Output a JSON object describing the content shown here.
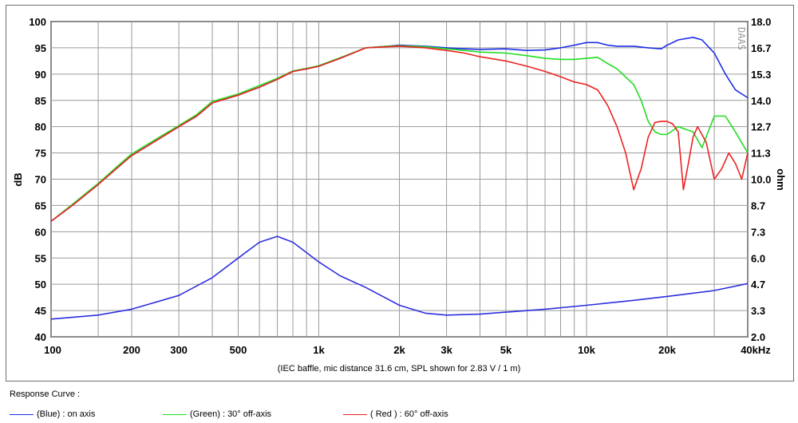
{
  "chart_data": {
    "type": "line",
    "title": "",
    "caption": "(IEC baffle, mic distance 31.6 cm, SPL shown for 2.83 V / 1 m)",
    "brand_mark": "DAAS",
    "xscale": "log",
    "xlim": [
      100,
      40000
    ],
    "x_ticks": [
      {
        "value": 100,
        "label": "100"
      },
      {
        "value": 200,
        "label": "200"
      },
      {
        "value": 300,
        "label": "300"
      },
      {
        "value": 500,
        "label": "500"
      },
      {
        "value": 1000,
        "label": "1k"
      },
      {
        "value": 2000,
        "label": "2k"
      },
      {
        "value": 3000,
        "label": "3k"
      },
      {
        "value": 5000,
        "label": "5k"
      },
      {
        "value": 10000,
        "label": "10k"
      },
      {
        "value": 20000,
        "label": "20k"
      },
      {
        "value": 40000,
        "label": "40kHz"
      }
    ],
    "x_gridlines": [
      100,
      150,
      200,
      300,
      400,
      500,
      600,
      700,
      800,
      900,
      1000,
      2000,
      3000,
      4000,
      5000,
      6000,
      7000,
      8000,
      9000,
      10000,
      20000,
      30000,
      40000
    ],
    "ylabel": "dB",
    "ylim": [
      40,
      100
    ],
    "y_ticks": [
      "100",
      "95",
      "90",
      "85",
      "80",
      "75",
      "70",
      "65",
      "60",
      "55",
      "50",
      "45",
      "40"
    ],
    "y2label": "ohm",
    "y2lim": [
      2.0,
      18.0
    ],
    "y2_ticks": [
      "18.0",
      "16.7",
      "15.3",
      "14.0",
      "12.7",
      "11.3",
      "10.0",
      "8.7",
      "7.3",
      "6.0",
      "4.7",
      "3.3",
      "2.0"
    ],
    "grid": true,
    "legend_placement": "bottom",
    "legend_title": "Response Curve :",
    "series": [
      {
        "name": "(Blue)  : on axis",
        "axis": "dB",
        "color": "#1e2ee6",
        "x": [
          100,
          120,
          150,
          180,
          200,
          250,
          300,
          350,
          400,
          500,
          600,
          700,
          800,
          900,
          1000,
          1200,
          1500,
          1800,
          2000,
          2500,
          3000,
          3500,
          4000,
          5000,
          6000,
          7000,
          8000,
          9000,
          10000,
          11000,
          12000,
          13000,
          15000,
          17000,
          19000,
          20000,
          22000,
          25000,
          27000,
          30000,
          33000,
          36000,
          40000
        ],
        "values": [
          62,
          65,
          69,
          72.5,
          74.5,
          77.5,
          80,
          82,
          84.5,
          86,
          87.5,
          89,
          90.5,
          91,
          91.5,
          93,
          95,
          95.3,
          95.5,
          95.3,
          95,
          94.8,
          94.7,
          94.8,
          94.5,
          94.6,
          95,
          95.5,
          96,
          96,
          95.5,
          95.3,
          95.3,
          95,
          94.8,
          95.5,
          96.5,
          97,
          96.5,
          94,
          90,
          87,
          85.5
        ]
      },
      {
        "name": "(Green) : 30° off-axis",
        "axis": "dB",
        "color": "#22dd22",
        "x": [
          100,
          120,
          150,
          180,
          200,
          250,
          300,
          350,
          400,
          500,
          600,
          700,
          800,
          900,
          1000,
          1200,
          1500,
          1800,
          2000,
          2500,
          3000,
          3500,
          4000,
          5000,
          6000,
          7000,
          8000,
          9000,
          10000,
          11000,
          12000,
          13000,
          15000,
          16000,
          17000,
          18000,
          19000,
          20000,
          22000,
          25000,
          27000,
          30000,
          33000,
          36000,
          40000
        ],
        "values": [
          62,
          65.2,
          69.2,
          72.8,
          74.8,
          77.8,
          80.2,
          82.3,
          84.8,
          86.2,
          87.8,
          89.2,
          90.6,
          91.1,
          91.6,
          93.1,
          95,
          95.3,
          95.4,
          95.2,
          94.8,
          94.5,
          94.2,
          94,
          93.5,
          93,
          92.8,
          92.8,
          93,
          93.2,
          92,
          91,
          88,
          85,
          81,
          79,
          78.5,
          78.5,
          80,
          79,
          76,
          82,
          82,
          79,
          75
        ]
      },
      {
        "name": "( Red ) : 60° off-axis",
        "axis": "dB",
        "color": "#ee2222",
        "x": [
          100,
          120,
          150,
          180,
          200,
          250,
          300,
          350,
          400,
          500,
          600,
          700,
          800,
          900,
          1000,
          1200,
          1500,
          1800,
          2000,
          2500,
          3000,
          3500,
          4000,
          5000,
          6000,
          7000,
          8000,
          9000,
          10000,
          11000,
          12000,
          13000,
          14000,
          15000,
          16000,
          17000,
          18000,
          19000,
          20000,
          21000,
          22000,
          23000,
          24000,
          25000,
          26000,
          28000,
          30000,
          32000,
          34000,
          36000,
          38000,
          40000
        ],
        "values": [
          62,
          65,
          69,
          72.5,
          74.5,
          77.5,
          80,
          82,
          84.5,
          86,
          87.5,
          89,
          90.5,
          91,
          91.5,
          93,
          95,
          95.2,
          95.3,
          95,
          94.5,
          94,
          93.3,
          92.5,
          91.5,
          90.5,
          89.5,
          88.5,
          88,
          87,
          84,
          80,
          75,
          68,
          72,
          78,
          80.8,
          81,
          81,
          80.5,
          79,
          68,
          73,
          78,
          80,
          77,
          70,
          72,
          75,
          73,
          70,
          75
        ]
      },
      {
        "name": "impedance",
        "axis": "ohm",
        "color": "#2e2ee0",
        "x": [
          100,
          150,
          200,
          300,
          400,
          500,
          600,
          700,
          800,
          1000,
          1200,
          1500,
          2000,
          2500,
          3000,
          4000,
          5000,
          7000,
          10000,
          15000,
          20000,
          30000,
          40000
        ],
        "values": [
          2.9,
          3.1,
          3.4,
          4.1,
          5.0,
          6.0,
          6.8,
          7.1,
          6.8,
          5.8,
          5.1,
          4.5,
          3.6,
          3.2,
          3.1,
          3.15,
          3.25,
          3.4,
          3.6,
          3.85,
          4.05,
          4.35,
          4.7
        ]
      }
    ]
  }
}
